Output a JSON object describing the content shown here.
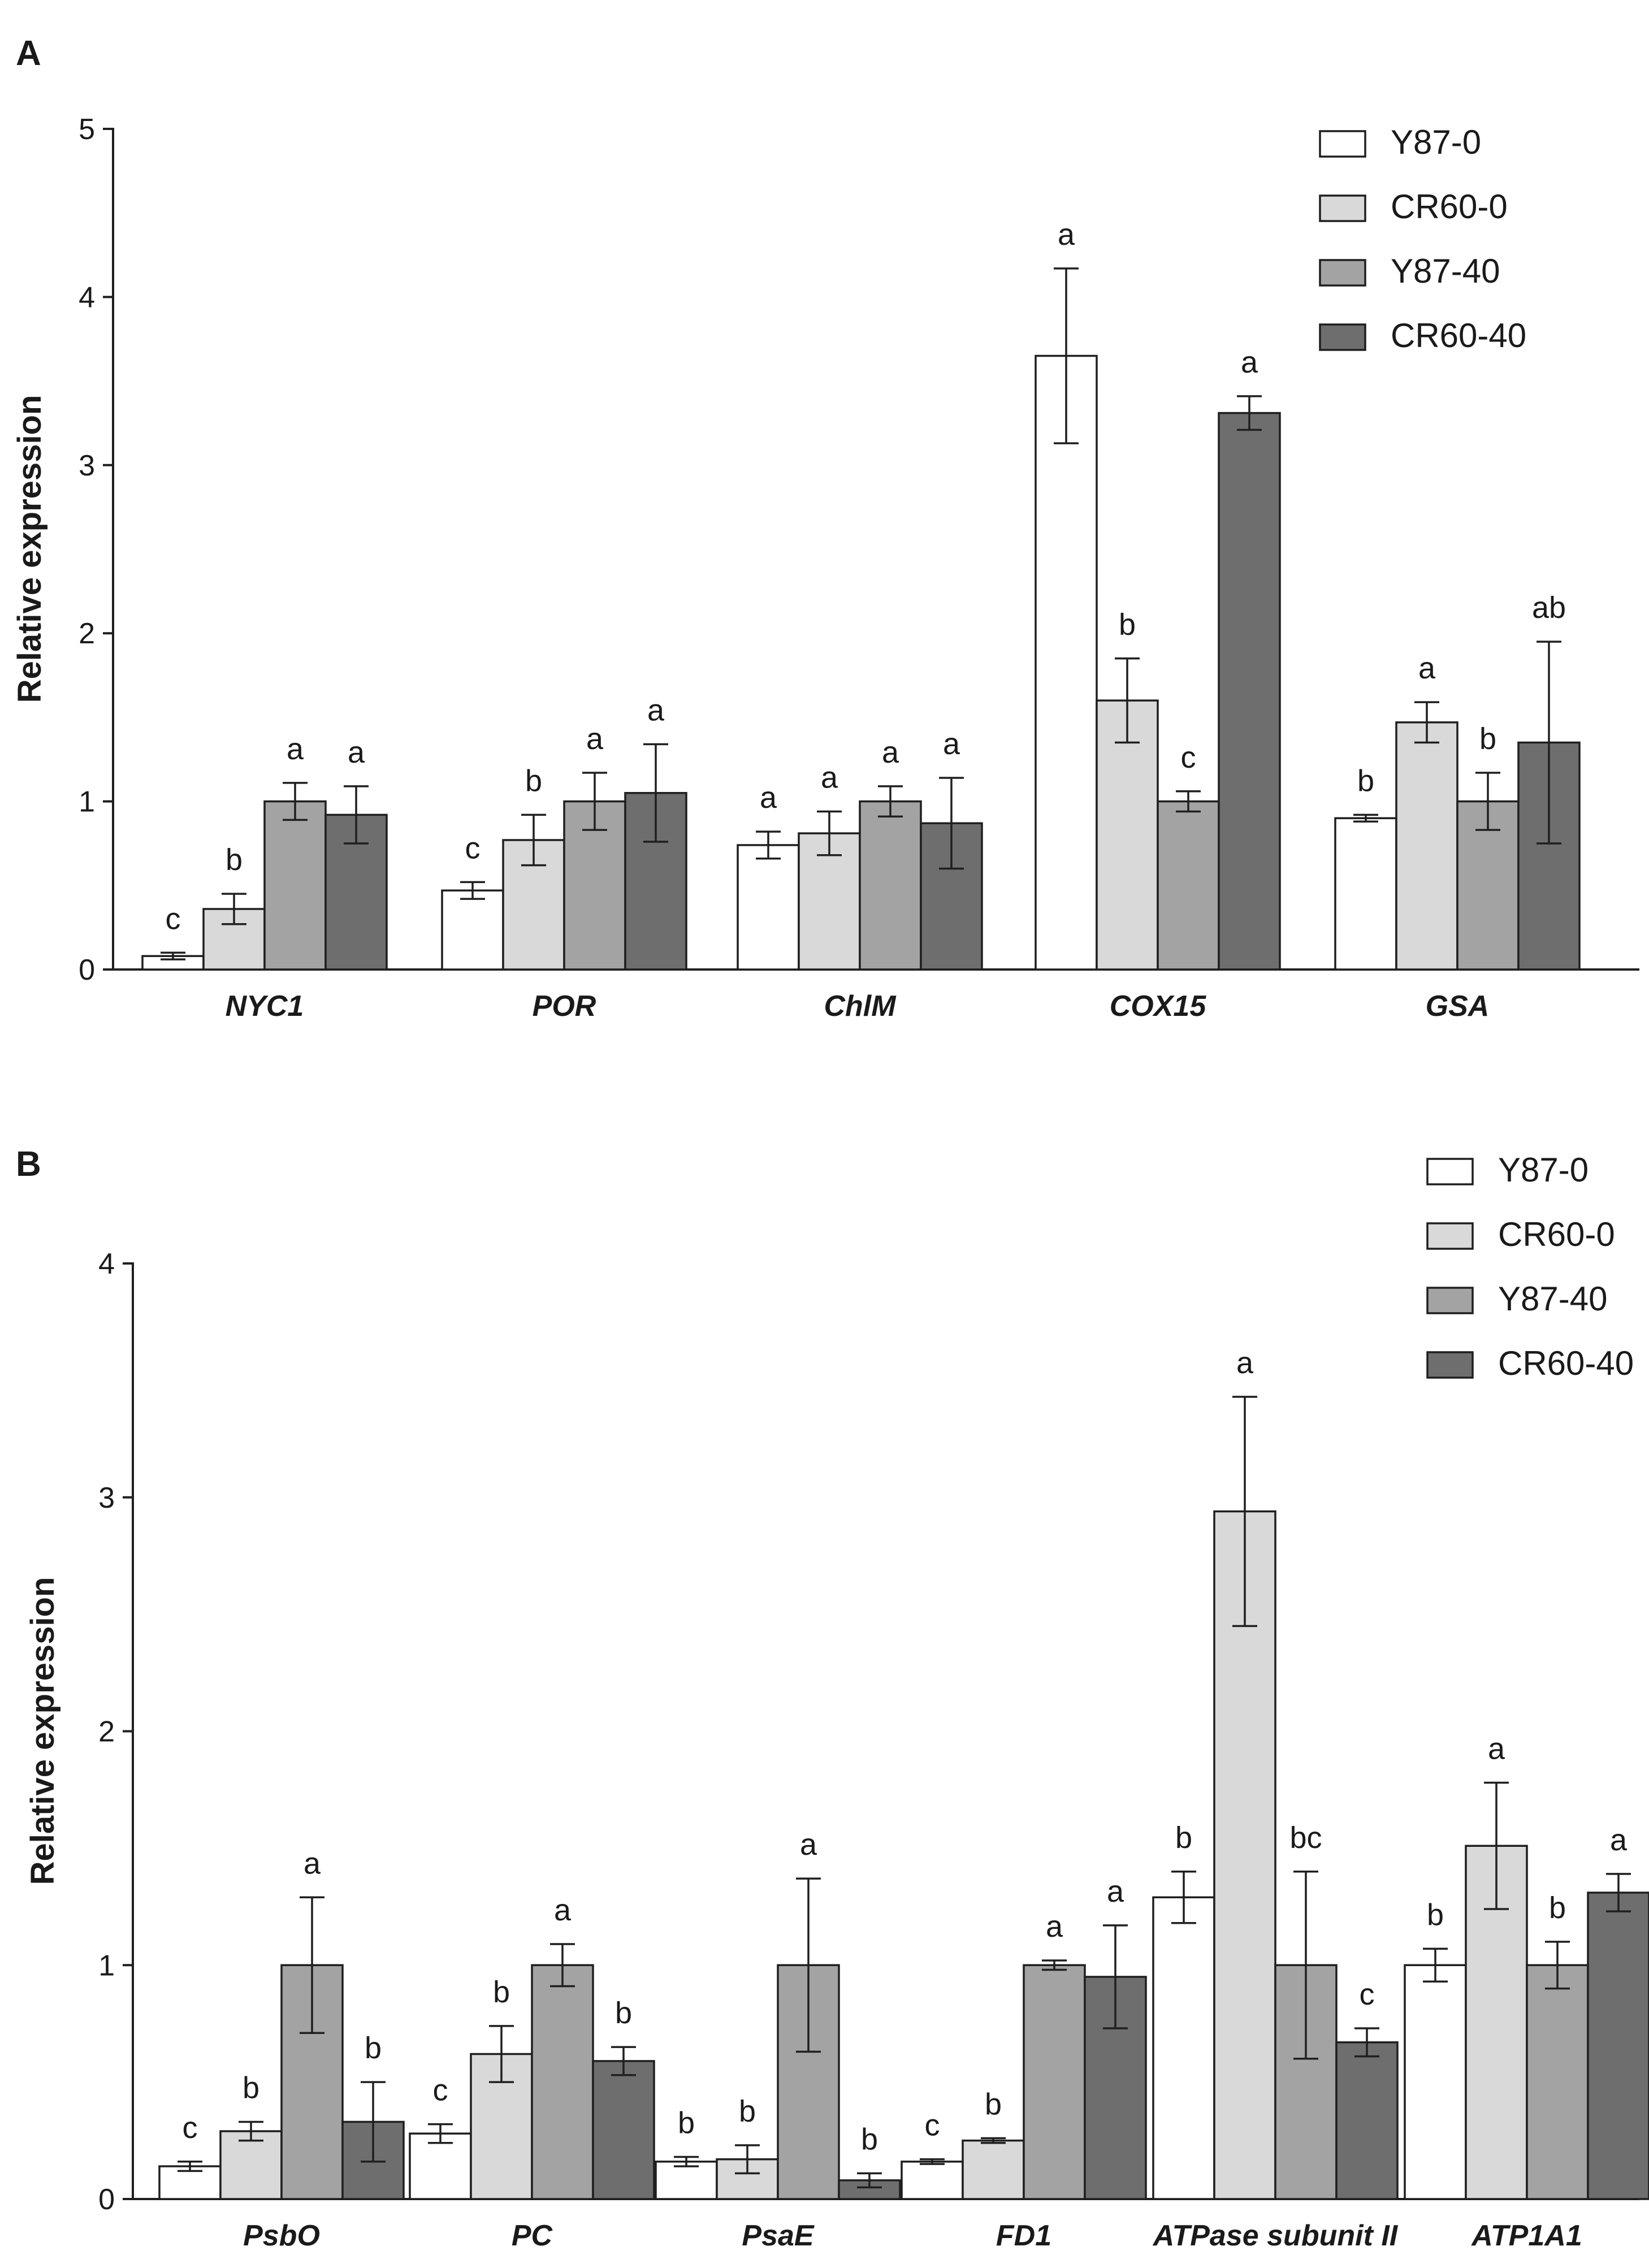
{
  "chart_data": [
    {
      "type": "bar",
      "panel": "A",
      "ylabel": "Relative expression",
      "xlabel": "",
      "ylim": [
        0,
        5
      ],
      "yticks": [
        0,
        1,
        2,
        3,
        4,
        5
      ],
      "legend_position": "top-right",
      "categories": [
        "NYC1",
        "POR",
        "ChlM",
        "COX15",
        "GSA"
      ],
      "series": [
        {
          "name": "Y87-0",
          "color": "#ffffff",
          "values": [
            0.08,
            0.47,
            0.74,
            3.65,
            0.9
          ],
          "errors": [
            0.02,
            0.05,
            0.08,
            0.52,
            0.02
          ],
          "letters": [
            "c",
            "c",
            "a",
            "a",
            "b"
          ]
        },
        {
          "name": "CR60-0",
          "color": "#d9d9d9",
          "values": [
            0.36,
            0.77,
            0.81,
            1.6,
            1.47
          ],
          "errors": [
            0.09,
            0.15,
            0.13,
            0.25,
            0.12
          ],
          "letters": [
            "b",
            "b",
            "a",
            "b",
            "a"
          ]
        },
        {
          "name": "Y87-40",
          "color": "#a3a3a3",
          "values": [
            1.0,
            1.0,
            1.0,
            1.0,
            1.0
          ],
          "errors": [
            0.11,
            0.17,
            0.09,
            0.06,
            0.17
          ],
          "letters": [
            "a",
            "a",
            "a",
            "c",
            "b"
          ]
        },
        {
          "name": "CR60-40",
          "color": "#6e6e6e",
          "values": [
            0.92,
            1.05,
            0.87,
            3.31,
            1.35
          ],
          "errors": [
            0.17,
            0.29,
            0.27,
            0.1,
            0.6
          ],
          "letters": [
            "a",
            "a",
            "a",
            "a",
            "ab"
          ]
        }
      ]
    },
    {
      "type": "bar",
      "panel": "B",
      "ylabel": "Relative expression",
      "xlabel": "",
      "ylim": [
        0,
        4
      ],
      "yticks": [
        0,
        1,
        2,
        3,
        4
      ],
      "legend_position": "top-right",
      "categories": [
        "PsbO",
        "PC",
        "PsaE",
        "FD1",
        "ATPase subunit II",
        "ATP1A1"
      ],
      "series": [
        {
          "name": "Y87-0",
          "color": "#ffffff",
          "values": [
            0.14,
            0.28,
            0.16,
            0.16,
            1.29,
            1.0
          ],
          "errors": [
            0.02,
            0.04,
            0.02,
            0.01,
            0.11,
            0.07
          ],
          "letters": [
            "c",
            "c",
            "b",
            "c",
            "b",
            "b"
          ]
        },
        {
          "name": "CR60-0",
          "color": "#d9d9d9",
          "values": [
            0.29,
            0.62,
            0.17,
            0.25,
            2.94,
            1.51
          ],
          "errors": [
            0.04,
            0.12,
            0.06,
            0.01,
            0.49,
            0.27
          ],
          "letters": [
            "b",
            "b",
            "b",
            "b",
            "a",
            "a"
          ]
        },
        {
          "name": "Y87-40",
          "color": "#a3a3a3",
          "values": [
            1.0,
            1.0,
            1.0,
            1.0,
            1.0,
            1.0
          ],
          "errors": [
            0.29,
            0.09,
            0.37,
            0.02,
            0.4,
            0.1
          ],
          "letters": [
            "a",
            "a",
            "a",
            "a",
            "bc",
            "b"
          ]
        },
        {
          "name": "CR60-40",
          "color": "#6e6e6e",
          "values": [
            0.33,
            0.59,
            0.08,
            0.95,
            0.67,
            1.31
          ],
          "errors": [
            0.17,
            0.06,
            0.03,
            0.22,
            0.06,
            0.08
          ],
          "letters": [
            "b",
            "b",
            "b",
            "a",
            "c",
            "a"
          ]
        }
      ]
    }
  ]
}
